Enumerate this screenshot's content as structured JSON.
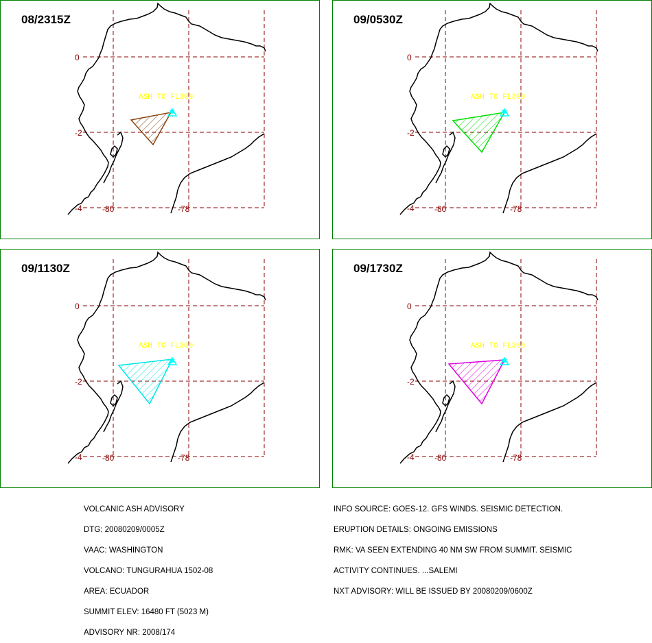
{
  "map": {
    "grid_lon": [
      -80,
      -78
    ],
    "grid_lat": [
      0,
      -2,
      -4
    ],
    "lon_labels": [
      "-80",
      "-78"
    ],
    "lat_labels": [
      "0",
      "-2",
      "-4"
    ],
    "ash_label": "ASH TO FL300",
    "colors": {
      "grid": "#8b0000",
      "coast": "#000000",
      "ash_label": "#ffff00",
      "volcano": "#00ffff",
      "frame": "#008000"
    }
  },
  "panels": [
    {
      "time": "08/2315Z",
      "ash_color": "#8b4513"
    },
    {
      "time": "09/0530Z",
      "ash_color": "#00e000"
    },
    {
      "time": "09/1130Z",
      "ash_color": "#00e5e5"
    },
    {
      "time": "09/1730Z",
      "ash_color": "#e000e0"
    }
  ],
  "advisory_left": [
    "VOLCANIC ASH ADVISORY",
    "DTG: 20080209/0005Z",
    "VAAC: WASHINGTON",
    "VOLCANO: TUNGURAHUA 1502-08",
    "AREA: ECUADOR",
    "SUMMIT ELEV: 16480 FT (5023 M)",
    "ADVISORY NR: 2008/174"
  ],
  "advisory_right": [
    "INFO SOURCE: GOES-12. GFS WINDS. SEISMIC DETECTION.",
    "ERUPTION DETAILS: ONGOING EMISSIONS",
    "RMK: VA SEEN EXTENDING 40 NM SW FROM SUMMIT. SEISMIC",
    "ACTIVITY CONTINUES. ...SALEMI",
    "NXT ADVISORY: WILL BE ISSUED BY 20080209/0600Z"
  ]
}
